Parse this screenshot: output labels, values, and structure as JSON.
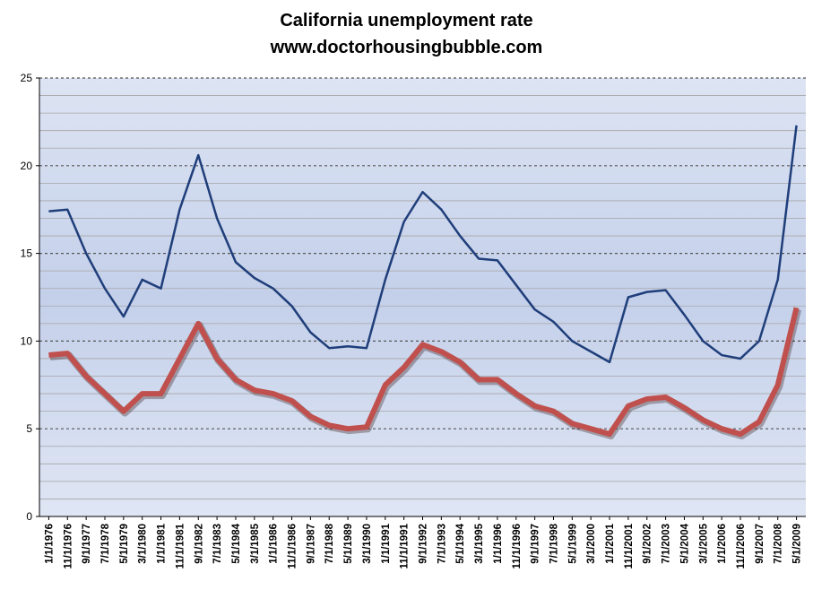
{
  "title": "California unemployment rate",
  "subtitle": "www.doctorhousingbubble.com",
  "chart_data": {
    "type": "line",
    "title": "California unemployment rate",
    "subtitle": "www.doctorhousingbubble.com",
    "xlabel": "",
    "ylabel": "",
    "ylim": [
      0,
      25
    ],
    "yticks": [
      0,
      5,
      10,
      15,
      20,
      25
    ],
    "grid": true,
    "legend": "none",
    "x_tick_labels": [
      "1/1/1976",
      "11/1/1976",
      "9/1/1977",
      "7/1/1978",
      "5/1/1979",
      "3/1/1980",
      "1/1/1981",
      "11/1/1981",
      "9/1/1982",
      "7/1/1983",
      "5/1/1984",
      "3/1/1985",
      "1/1/1986",
      "11/1/1986",
      "9/1/1987",
      "7/1/1988",
      "5/1/1989",
      "3/1/1990",
      "1/1/1991",
      "11/1/1991",
      "9/1/1992",
      "7/1/1993",
      "5/1/1994",
      "3/1/1995",
      "1/1/1996",
      "11/1/1996",
      "9/1/1997",
      "7/1/1998",
      "5/1/1999",
      "3/1/2000",
      "1/1/2001",
      "11/1/2001",
      "9/1/2002",
      "7/1/2003",
      "5/1/2004",
      "3/1/2005",
      "1/1/2006",
      "11/1/2006",
      "9/1/2007",
      "7/1/2008",
      "5/1/2009"
    ],
    "series": [
      {
        "color": "#1f3e7a",
        "x": [
          "1/1/1976",
          "11/1/1976",
          "9/1/1977",
          "7/1/1978",
          "5/1/1979",
          "3/1/1980",
          "1/1/1981",
          "11/1/1981",
          "9/1/1982",
          "7/1/1983",
          "5/1/1984",
          "3/1/1985",
          "1/1/1986",
          "11/1/1986",
          "9/1/1987",
          "7/1/1988",
          "5/1/1989",
          "3/1/1990",
          "1/1/1991",
          "11/1/1991",
          "9/1/1992",
          "7/1/1993",
          "5/1/1994",
          "3/1/1995",
          "1/1/1996",
          "11/1/1996",
          "9/1/1997",
          "7/1/1998",
          "5/1/1999",
          "3/1/2000",
          "1/1/2001",
          "11/1/2001",
          "9/1/2002",
          "7/1/2003",
          "5/1/2004",
          "3/1/2005",
          "1/1/2006",
          "11/1/2006",
          "9/1/2007",
          "7/1/2008",
          "5/1/2009"
        ],
        "values": [
          17.4,
          17.5,
          15.0,
          13.0,
          11.4,
          13.5,
          13.0,
          17.5,
          20.6,
          17.0,
          14.5,
          13.6,
          13.0,
          12.0,
          10.5,
          9.6,
          9.7,
          9.6,
          13.5,
          16.8,
          18.5,
          17.5,
          16.0,
          14.7,
          14.6,
          13.2,
          11.8,
          11.1,
          10.0,
          9.4,
          8.8,
          12.5,
          12.8,
          12.9,
          11.5,
          10.0,
          9.2,
          9.0,
          10.0,
          13.5,
          22.3
        ]
      },
      {
        "color": "#c0504d",
        "x": [
          "1/1/1976",
          "11/1/1976",
          "9/1/1977",
          "7/1/1978",
          "5/1/1979",
          "3/1/1980",
          "1/1/1981",
          "11/1/1981",
          "9/1/1982",
          "7/1/1983",
          "5/1/1984",
          "3/1/1985",
          "1/1/1986",
          "11/1/1986",
          "9/1/1987",
          "7/1/1988",
          "5/1/1989",
          "3/1/1990",
          "1/1/1991",
          "11/1/1991",
          "9/1/1992",
          "7/1/1993",
          "5/1/1994",
          "3/1/1995",
          "1/1/1996",
          "11/1/1996",
          "9/1/1997",
          "7/1/1998",
          "5/1/1999",
          "3/1/2000",
          "1/1/2001",
          "11/1/2001",
          "9/1/2002",
          "7/1/2003",
          "5/1/2004",
          "3/1/2005",
          "1/1/2006",
          "11/1/2006",
          "9/1/2007",
          "7/1/2008",
          "5/1/2009"
        ],
        "values": [
          9.2,
          9.3,
          8.0,
          7.0,
          6.0,
          7.0,
          7.0,
          9.0,
          11.0,
          9.0,
          7.8,
          7.2,
          7.0,
          6.6,
          5.7,
          5.2,
          5.0,
          5.1,
          7.5,
          8.5,
          9.8,
          9.4,
          8.8,
          7.8,
          7.8,
          7.0,
          6.3,
          6.0,
          5.3,
          5.0,
          4.7,
          6.3,
          6.7,
          6.8,
          6.2,
          5.5,
          5.0,
          4.7,
          5.4,
          7.5,
          11.9
        ]
      }
    ]
  }
}
